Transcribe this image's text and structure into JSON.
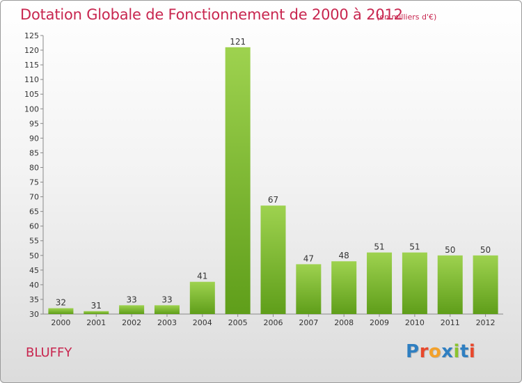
{
  "header": {
    "title": "Dotation Globale de Fonctionnement de 2000 à 2012",
    "subtitle": "(en milliers d'€)"
  },
  "footer": {
    "commune": "BLUFFY",
    "logo_text": "Proxiti",
    "logo_colors": [
      "#2f7fc1",
      "#e8482c",
      "#f3a12a",
      "#2f7fc1",
      "#8bc32f",
      "#2f7fc1",
      "#e8482c"
    ]
  },
  "colors": {
    "title": "#c8264f",
    "bar_light": "#9ed24f",
    "bar_dark": "#5f9e1a"
  },
  "chart_data": {
    "type": "bar",
    "categories": [
      "2000",
      "2001",
      "2002",
      "2003",
      "2004",
      "2005",
      "2006",
      "2007",
      "2008",
      "2009",
      "2010",
      "2011",
      "2012"
    ],
    "values": [
      32,
      31,
      33,
      33,
      41,
      121,
      67,
      47,
      48,
      51,
      51,
      50,
      50
    ],
    "title": "Dotation Globale de Fonctionnement de 2000 à 2012",
    "subtitle": "(en milliers d'€)",
    "ylim": [
      30,
      125
    ],
    "yticks": [
      30,
      35,
      40,
      45,
      50,
      55,
      60,
      65,
      70,
      75,
      80,
      85,
      90,
      95,
      100,
      105,
      110,
      115,
      120,
      125
    ],
    "grid": false,
    "data_labels": true
  }
}
